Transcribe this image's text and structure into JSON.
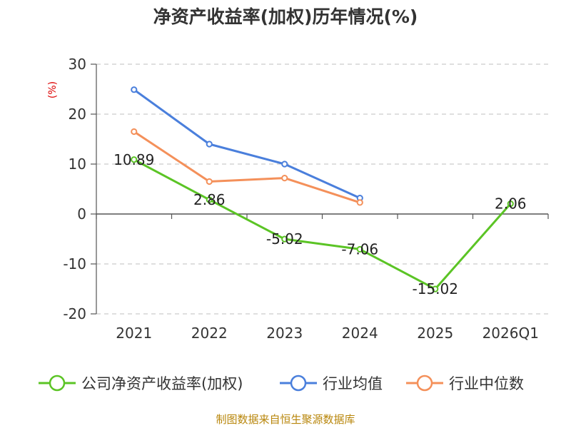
{
  "chart_data": {
    "type": "line",
    "title": "净资产收益率(加权)历年情况(%)",
    "ylabel": "(%)",
    "categories": [
      "2021",
      "2022",
      "2023",
      "2024",
      "2025",
      "2026Q1"
    ],
    "ylim": [
      -20,
      30
    ],
    "yticks": [
      -20,
      -10,
      0,
      10,
      20,
      30
    ],
    "grid": true,
    "legend_position": "bottom",
    "series": [
      {
        "name": "公司净资产收益率(加权)",
        "color": "#5bc425",
        "values": [
          10.89,
          2.86,
          -5.02,
          -7.06,
          -15.02,
          2.06
        ],
        "labels": [
          "10.89",
          "2.86",
          "-5.02",
          "-7.06",
          "-15.02",
          "2.06"
        ]
      },
      {
        "name": "行业均值",
        "color": "#4a7fdc",
        "values": [
          24.9,
          14.0,
          10.0,
          3.2,
          null,
          null
        ]
      },
      {
        "name": "行业中位数",
        "color": "#f4905a",
        "values": [
          16.5,
          6.5,
          7.2,
          2.3,
          null,
          null
        ]
      }
    ],
    "source": "制图数据来自恒生聚源数据库",
    "ylabel_color": "#dd0000",
    "source_color": "#b8860b"
  }
}
